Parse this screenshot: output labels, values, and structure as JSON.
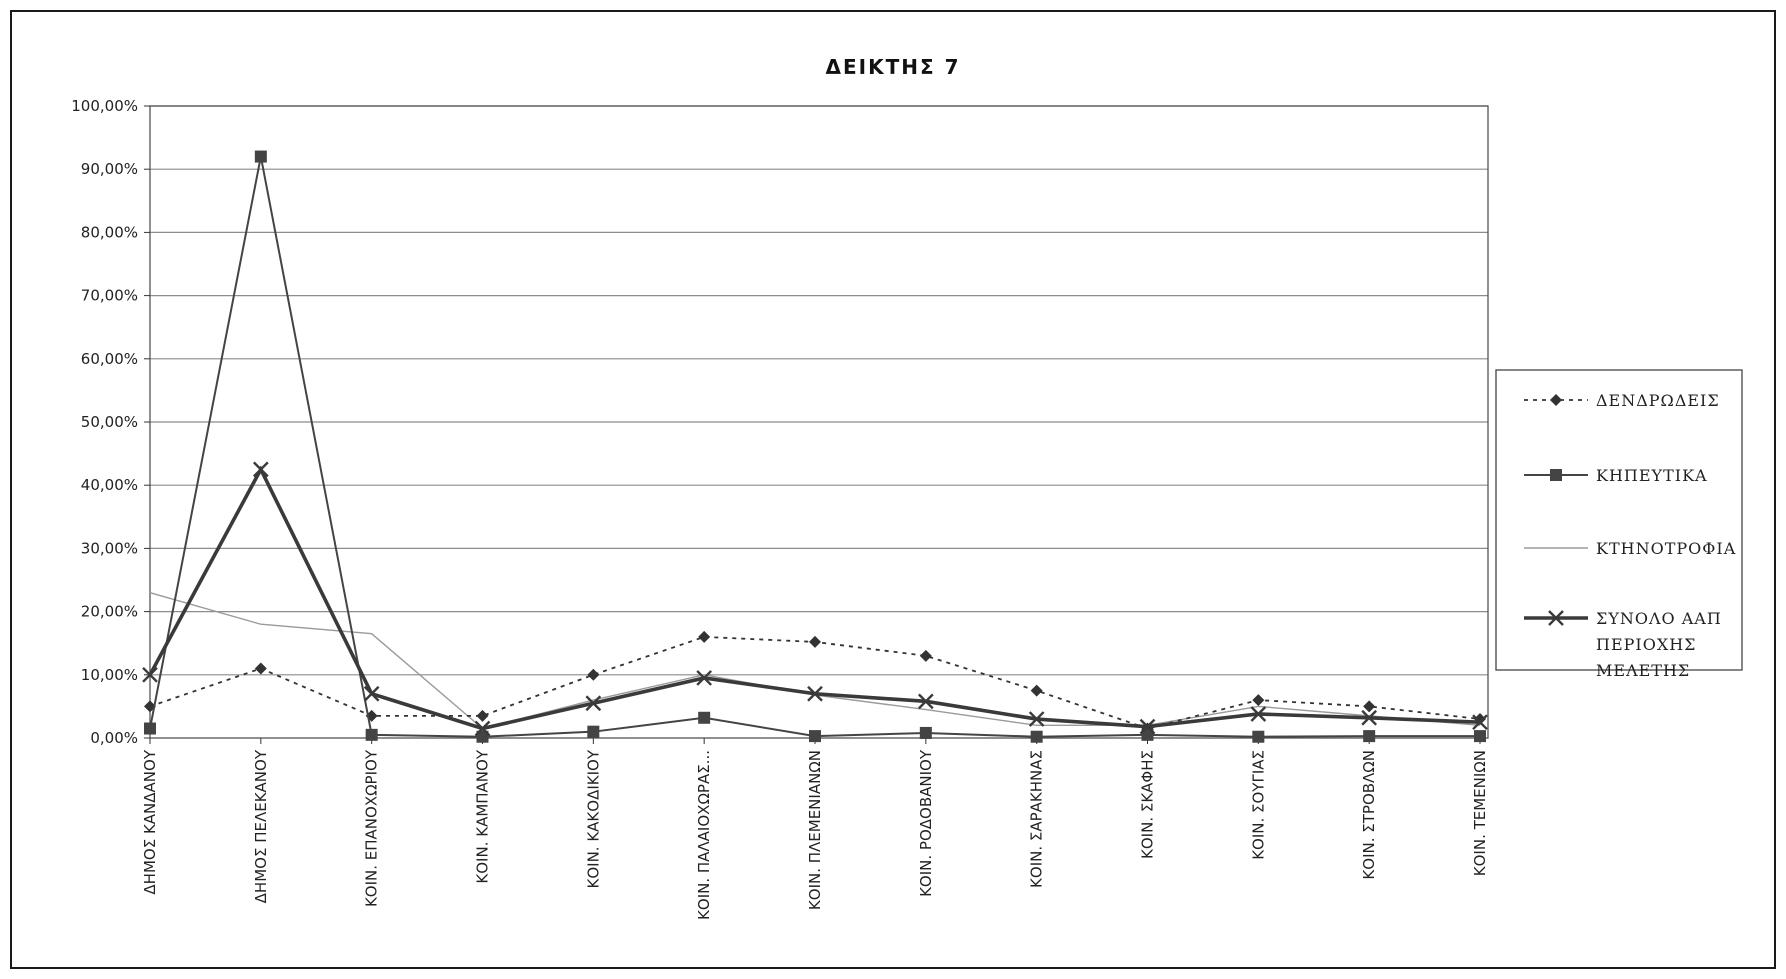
{
  "chart_data": {
    "type": "line",
    "title": "ΔΕΙΚΤΗΣ 7",
    "xlabel": "",
    "ylabel": "",
    "ylim": [
      0,
      100
    ],
    "y_ticks": [
      "0,00%",
      "10,00%",
      "20,00%",
      "30,00%",
      "40,00%",
      "50,00%",
      "60,00%",
      "70,00%",
      "80,00%",
      "90,00%",
      "100,00%"
    ],
    "grid": true,
    "legend_position": "right",
    "categories": [
      "ΔΗΜΟΣ ΚΑΝΔΑΝΟΥ",
      "ΔΗΜΟΣ ΠΕΛΕΚΑΝΟΥ",
      "ΚΟΙΝ. ΕΠΑΝΟΧΩΡΙΟΥ",
      "ΚΟΙΝ. ΚΑΜΠΑΝΟΥ",
      "ΚΟΙΝ. ΚΑΚΟΔΙΚΙΟΥ",
      "ΚΟΙΝ. ΠΑΛΑΙΟΧΩΡΑΣ...",
      "ΚΟΙΝ. ΠΛΕΜΕΝΙΑΝΩΝ",
      "ΚΟΙΝ. ΡΟΔΟΒΑΝΙΟΥ",
      "ΚΟΙΝ. ΣΑΡΑΚΗΝΑΣ",
      "ΚΟΙΝ. ΣΚΑΦΗΣ",
      "ΚΟΙΝ. ΣΟΥΓΙΑΣ",
      "ΚΟΙΝ. ΣΤΡΟΒΛΩΝ",
      "ΚΟΙΝ. ΤΕΜΕΝΙΩΝ"
    ],
    "series": [
      {
        "name": "ΔΕΝΔΡΩΔΕΙΣ",
        "style": "dotted-diamond",
        "color": "#333333",
        "values": [
          5.0,
          11.0,
          3.5,
          3.5,
          10.0,
          16.0,
          15.2,
          13.0,
          7.5,
          1.5,
          6.0,
          5.0,
          3.0
        ]
      },
      {
        "name": "ΚΗΠΕΥΤΙΚΑ",
        "style": "solid-square",
        "color": "#444444",
        "values": [
          1.5,
          92.0,
          0.5,
          0.2,
          1.0,
          3.2,
          0.3,
          0.8,
          0.2,
          0.5,
          0.2,
          0.3,
          0.3
        ]
      },
      {
        "name": "ΚΤΗΝΟΤΡΟΦΙΑ",
        "style": "thin",
        "color": "#9a9a9a",
        "values": [
          23.0,
          18.0,
          16.5,
          1.5,
          6.0,
          10.0,
          6.8,
          4.5,
          2.0,
          2.0,
          5.0,
          3.5,
          2.0
        ]
      },
      {
        "name": "ΣΥΝΟΛΟ ΑΑΠ ΠΕΡΙΟΧΗΣ ΜΕΛΕΤΗΣ",
        "legend_lines": [
          "ΣΥΝΟΛΟ ΑΑΠ",
          "ΠΕΡΙΟΧΗΣ",
          "ΜΕΛΕΤΗΣ"
        ],
        "style": "bold-x",
        "color": "#3a3a3a",
        "values": [
          10.0,
          42.5,
          7.0,
          1.5,
          5.5,
          9.5,
          7.0,
          5.8,
          3.0,
          1.8,
          3.8,
          3.2,
          2.5
        ]
      }
    ]
  }
}
